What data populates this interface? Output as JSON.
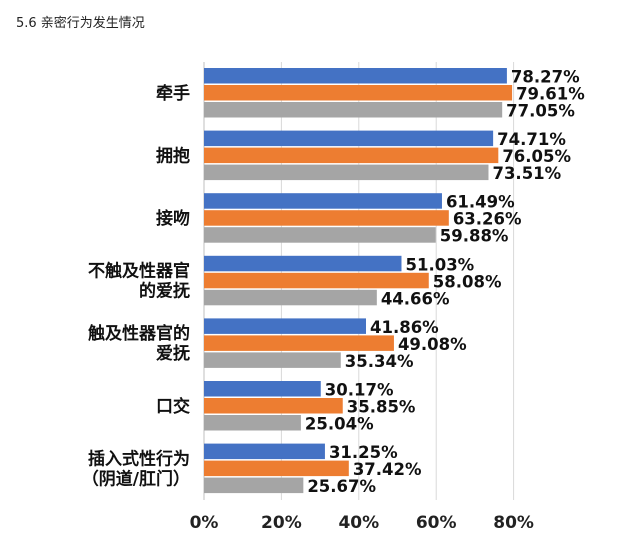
{
  "page": {
    "title": "5.6 亲密行为发生情况"
  },
  "chart_data": {
    "type": "bar",
    "orientation": "horizontal",
    "title": "",
    "xlabel": "",
    "ylabel": "",
    "xlim": [
      0,
      80
    ],
    "x_ticks": [
      "0%",
      "20%",
      "40%",
      "60%",
      "80%"
    ],
    "grid": true,
    "legend": "none",
    "categories": [
      [
        "牵手"
      ],
      [
        "拥抱"
      ],
      [
        "接吻"
      ],
      [
        "不触及性器官",
        "的爱抚"
      ],
      [
        "触及性器官的",
        "爱抚"
      ],
      [
        "口交"
      ],
      [
        "插入式性行为",
        "（阴道/肛门）"
      ]
    ],
    "series": [
      {
        "color": "#4472C4",
        "values": [
          78.27,
          74.71,
          61.49,
          51.03,
          41.86,
          30.17,
          31.25
        ]
      },
      {
        "color": "#ED7D31",
        "values": [
          79.61,
          76.05,
          63.26,
          58.08,
          49.08,
          35.85,
          37.42
        ]
      },
      {
        "color": "#A5A5A5",
        "values": [
          77.05,
          73.51,
          59.88,
          44.66,
          35.34,
          25.04,
          25.67
        ]
      }
    ]
  }
}
